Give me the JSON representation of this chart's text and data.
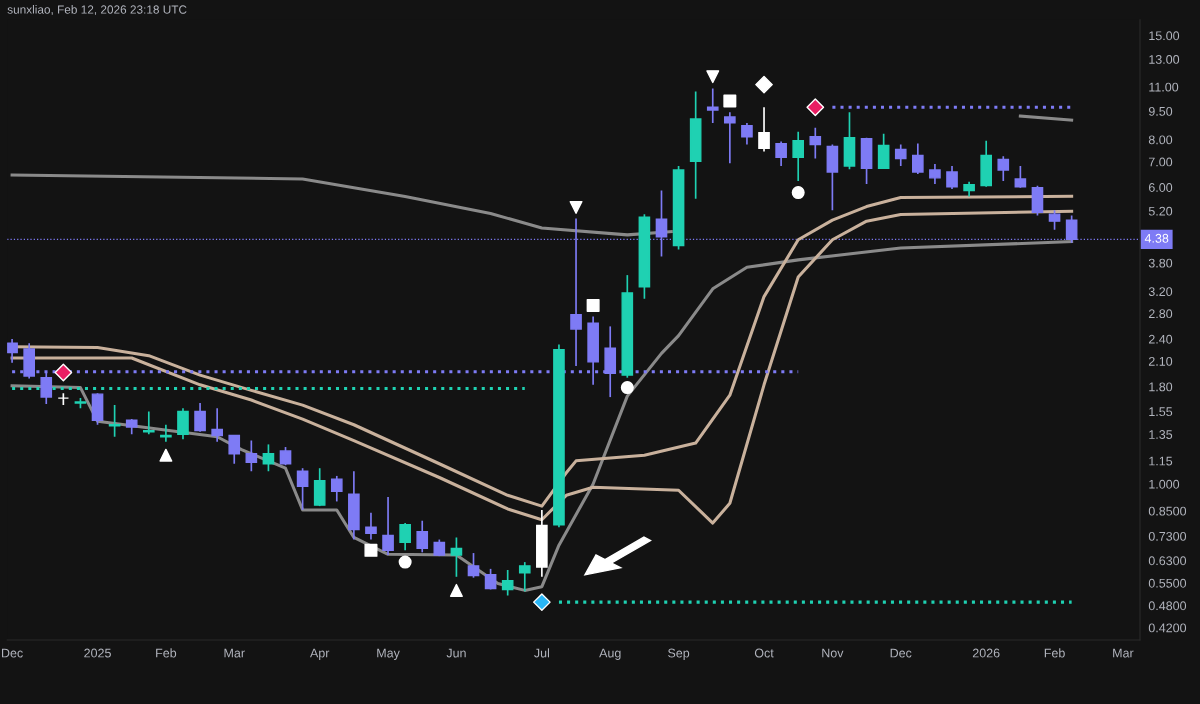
{
  "chart_data": {
    "type": "candlestick",
    "annotations": [
      "sunxliao, Feb 12, 2026 23:18 UTC"
    ],
    "x": [
      "2024-12-02",
      "2024-12-09",
      "2024-12-16",
      "2024-12-23",
      "2024-12-30",
      "2025-01-06",
      "2025-01-13",
      "2025-01-20",
      "2025-01-27",
      "2025-02-03",
      "2025-02-10",
      "2025-02-17",
      "2025-02-24",
      "2025-03-03",
      "2025-03-10",
      "2025-03-17",
      "2025-03-24",
      "2025-03-31",
      "2025-04-07",
      "2025-04-14",
      "2025-04-21",
      "2025-04-28",
      "2025-05-05",
      "2025-05-12",
      "2025-05-19",
      "2025-05-26",
      "2025-06-02",
      "2025-06-09",
      "2025-06-16",
      "2025-06-23",
      "2025-06-30",
      "2025-07-07",
      "2025-07-14",
      "2025-07-21",
      "2025-07-28",
      "2025-08-04",
      "2025-08-11",
      "2025-08-18",
      "2025-08-25",
      "2025-09-01",
      "2025-09-08",
      "2025-09-15",
      "2025-09-22",
      "2025-09-29",
      "2025-10-06",
      "2025-10-13",
      "2025-10-20",
      "2025-10-27",
      "2025-11-03",
      "2025-11-10",
      "2025-11-17",
      "2025-11-24",
      "2025-12-01",
      "2025-12-08",
      "2025-12-15",
      "2025-12-22",
      "2025-12-29",
      "2026-01-05",
      "2026-01-12",
      "2026-01-19",
      "2026-01-26",
      "2026-02-02",
      "2026-02-09"
    ],
    "ohlc": [
      [
        2.34,
        2.4,
        2.08,
        2.21
      ],
      [
        2.26,
        2.34,
        1.89,
        1.92
      ],
      [
        1.9,
        1.97,
        1.62,
        1.69
      ],
      [
        1.68,
        1.73,
        1.61,
        1.68
      ],
      [
        1.63,
        1.68,
        1.58,
        1.64
      ],
      [
        1.72,
        1.73,
        1.43,
        1.47
      ],
      [
        1.42,
        1.61,
        1.33,
        1.43
      ],
      [
        1.47,
        1.48,
        1.35,
        1.41
      ],
      [
        1.37,
        1.55,
        1.35,
        1.38
      ],
      [
        1.33,
        1.43,
        1.29,
        1.34
      ],
      [
        1.35,
        1.58,
        1.31,
        1.55
      ],
      [
        1.55,
        1.63,
        1.37,
        1.38
      ],
      [
        1.39,
        1.58,
        1.29,
        1.34
      ],
      [
        1.34,
        1.34,
        1.13,
        1.2
      ],
      [
        1.2,
        1.3,
        1.08,
        1.14
      ],
      [
        1.13,
        1.27,
        1.08,
        1.2
      ],
      [
        1.22,
        1.25,
        1.12,
        1.13
      ],
      [
        1.08,
        1.1,
        0.855,
        0.986
      ],
      [
        0.88,
        1.1,
        0.875,
        1.02
      ],
      [
        1.03,
        1.05,
        0.9,
        0.957
      ],
      [
        0.94,
        1.08,
        0.715,
        0.76
      ],
      [
        0.77,
        0.84,
        0.715,
        0.742
      ],
      [
        0.733,
        0.924,
        0.651,
        0.67
      ],
      [
        0.703,
        0.79,
        0.67,
        0.782
      ],
      [
        0.75,
        0.801,
        0.662,
        0.678
      ],
      [
        0.703,
        0.715,
        0.647,
        0.651
      ],
      [
        0.651,
        0.724,
        0.571,
        0.678
      ],
      [
        0.61,
        0.659,
        0.568,
        0.575
      ],
      [
        0.578,
        0.599,
        0.529,
        0.532
      ],
      [
        0.529,
        0.595,
        0.51,
        0.558
      ],
      [
        0.585,
        0.624,
        0.523,
        0.61
      ],
      [
        0.606,
        0.855,
        0.571,
        0.778
      ],
      [
        0.782,
        2.32,
        0.77,
        2.25
      ],
      [
        2.78,
        4.97,
        2.04,
        2.55
      ],
      [
        2.64,
        2.75,
        1.82,
        2.09
      ],
      [
        2.27,
        2.59,
        1.69,
        1.95
      ],
      [
        1.93,
        3.53,
        1.9,
        3.17
      ],
      [
        3.29,
        5.1,
        3.06,
        5.01
      ],
      [
        4.95,
        5.88,
        3.95,
        4.45
      ],
      [
        4.22,
        6.82,
        4.12,
        6.66
      ],
      [
        7.02,
        10.7,
        5.6,
        9.06
      ],
      [
        9.73,
        10.9,
        8.85,
        9.56
      ],
      [
        9.17,
        9.44,
        6.94,
        8.85
      ],
      [
        8.7,
        8.85,
        7.77,
        8.14
      ],
      [
        8.34,
        9.73,
        7.45,
        7.59
      ],
      [
        7.81,
        7.91,
        6.82,
        7.19
      ],
      [
        7.19,
        8.39,
        6.23,
        7.95
      ],
      [
        8.14,
        8.59,
        7.14,
        7.77
      ],
      [
        7.68,
        7.77,
        5.22,
        6.58
      ],
      [
        6.82,
        9.44,
        6.69,
        8.09
      ],
      [
        8.04,
        8.09,
        6.12,
        6.73
      ],
      [
        6.73,
        8.29,
        6.73,
        7.72
      ],
      [
        7.54,
        7.77,
        6.82,
        7.14
      ],
      [
        7.27,
        7.81,
        6.5,
        6.58
      ],
      [
        6.66,
        6.9,
        6.12,
        6.35
      ],
      [
        6.58,
        6.82,
        5.94,
        6.02
      ],
      [
        5.88,
        6.2,
        5.67,
        6.09
      ],
      [
        6.06,
        7.95,
        6.02,
        7.27
      ],
      [
        7.1,
        7.23,
        6.23,
        6.66
      ],
      [
        6.31,
        6.82,
        5.98,
        6.02
      ],
      [
        5.98,
        6.05,
        5.06,
        5.16
      ],
      [
        5.1,
        5.22,
        4.64,
        4.89
      ],
      [
        4.92,
        5.06,
        4.29,
        4.38
      ]
    ],
    "colors": [
      "#7e7bf5",
      "#7e7bf5",
      "#7e7bf5",
      "#ffffff",
      "#1fd1b2",
      "#7e7bf5",
      "#1fd1b2",
      "#7e7bf5",
      "#1fd1b2",
      "#1fd1b2",
      "#1fd1b2",
      "#7e7bf5",
      "#7e7bf5",
      "#7e7bf5",
      "#7e7bf5",
      "#1fd1b2",
      "#7e7bf5",
      "#7e7bf5",
      "#1fd1b2",
      "#7e7bf5",
      "#7e7bf5",
      "#7e7bf5",
      "#7e7bf5",
      "#1fd1b2",
      "#7e7bf5",
      "#7e7bf5",
      "#1fd1b2",
      "#7e7bf5",
      "#7e7bf5",
      "#1fd1b2",
      "#1fd1b2",
      "#ffffff",
      "#1fd1b2",
      "#7e7bf5",
      "#7e7bf5",
      "#7e7bf5",
      "#1fd1b2",
      "#1fd1b2",
      "#7e7bf5",
      "#1fd1b2",
      "#1fd1b2",
      "#7e7bf5",
      "#7e7bf5",
      "#7e7bf5",
      "#ffffff",
      "#7e7bf5",
      "#1fd1b2",
      "#7e7bf5",
      "#7e7bf5",
      "#1fd1b2",
      "#7e7bf5",
      "#1fd1b2",
      "#7e7bf5",
      "#7e7bf5",
      "#7e7bf5",
      "#7e7bf5",
      "#1fd1b2",
      "#1fd1b2",
      "#7e7bf5",
      "#7e7bf5",
      "#7e7bf5",
      "#7e7bf5",
      "#7e7bf5"
    ],
    "series": [
      {
        "type": "line",
        "color": "#8a8a8a",
        "line_style": "solid",
        "x": [
          "2024-12-02",
          "2025-03-31",
          "2025-05-12",
          "2025-06-16",
          "2025-07-07",
          "2025-08-11",
          "2025-08-29"
        ],
        "values": [
          6.46,
          6.31,
          5.67,
          5.12,
          4.69,
          4.5,
          4.59
        ]
      },
      {
        "type": "line",
        "color": "#8a8a8a",
        "line_style": "solid",
        "x": [
          "2024-12-02",
          "2024-12-30",
          "2025-01-06",
          "2025-02-24",
          "2025-03-06",
          "2025-03-24",
          "2025-03-31",
          "2025-04-14",
          "2025-04-21",
          "2025-05-05",
          "2025-06-02",
          "2025-06-19",
          "2025-06-30",
          "2025-07-07",
          "2025-07-14",
          "2025-07-28",
          "2025-08-11",
          "2025-08-25",
          "2025-09-01",
          "2025-09-15",
          "2025-09-29",
          "2025-10-20",
          "2025-12-01",
          "2026-02-09"
        ],
        "values": [
          1.81,
          1.79,
          1.46,
          1.33,
          1.23,
          1.1,
          0.855,
          0.855,
          0.724,
          0.654,
          0.651,
          0.548,
          0.526,
          0.538,
          0.691,
          1.0,
          1.7,
          2.2,
          2.45,
          3.25,
          3.7,
          3.87,
          4.16,
          4.32
        ]
      },
      {
        "type": "line",
        "color": "#8a8a8a",
        "line_style": "solid",
        "x": [
          "2026-01-19",
          "2026-02-09"
        ],
        "values": [
          9.22,
          9.0
        ]
      },
      {
        "type": "line",
        "color": "#c9b19c",
        "line_style": "solid",
        "x": [
          "2024-12-02",
          "2025-01-06",
          "2025-01-27",
          "2025-02-17",
          "2025-03-10",
          "2025-03-31",
          "2025-04-21",
          "2025-05-26",
          "2025-06-23",
          "2025-07-07",
          "2025-07-17",
          "2025-07-21",
          "2025-08-18",
          "2025-09-08",
          "2025-09-22",
          "2025-10-06",
          "2025-10-20",
          "2025-11-03",
          "2025-11-17",
          "2025-12-01",
          "2026-02-09"
        ],
        "values": [
          2.29,
          2.28,
          2.17,
          1.93,
          1.76,
          1.61,
          1.43,
          1.13,
          0.934,
          0.875,
          1.07,
          1.15,
          1.19,
          1.28,
          1.71,
          3.1,
          4.37,
          4.92,
          5.34,
          5.64,
          5.68
        ]
      },
      {
        "type": "line",
        "color": "#c9b19c",
        "line_style": "solid",
        "x": [
          "2024-12-02",
          "2025-01-20",
          "2025-02-17",
          "2025-03-10",
          "2025-03-31",
          "2025-04-21",
          "2025-05-26",
          "2025-06-23",
          "2025-07-07",
          "2025-07-17",
          "2025-07-28",
          "2025-09-01",
          "2025-09-15",
          "2025-09-22",
          "2025-10-06",
          "2025-10-20",
          "2025-11-03",
          "2025-11-17",
          "2025-12-01",
          "2026-02-09"
        ],
        "values": [
          2.14,
          2.14,
          1.82,
          1.66,
          1.48,
          1.3,
          1.04,
          0.86,
          0.806,
          0.934,
          0.98,
          0.963,
          0.79,
          0.89,
          1.82,
          3.49,
          4.37,
          4.89,
          5.09,
          5.19
        ]
      },
      {
        "type": "line",
        "color": "#7e7bf5",
        "line_style": "dotted",
        "x": [
          "2024-12-02",
          "2025-10-20"
        ],
        "values": [
          1.97,
          1.97
        ]
      },
      {
        "type": "line",
        "color": "#1fd1b2",
        "line_style": "dotted",
        "x": [
          "2024-12-02",
          "2025-06-30"
        ],
        "values": [
          1.78,
          1.78
        ]
      },
      {
        "type": "line",
        "color": "#1fd1b2",
        "line_style": "dotted",
        "x": [
          "2025-07-14",
          "2026-02-09"
        ],
        "values": [
          0.49,
          0.49
        ]
      },
      {
        "type": "line",
        "color": "#7e7bf5",
        "line_style": "dotted",
        "x": [
          "2025-11-03",
          "2026-02-09"
        ],
        "values": [
          9.73,
          9.73
        ]
      },
      {
        "type": "scatter",
        "marker": "diamond",
        "color": "#e91e63",
        "x": [
          "2024-12-23",
          "2025-10-27"
        ],
        "values": [
          1.96,
          9.73
        ]
      },
      {
        "type": "scatter",
        "marker": "diamond",
        "color": "#29b6f6",
        "x": [
          "2025-07-07"
        ],
        "values": [
          0.49
        ]
      },
      {
        "type": "scatter",
        "marker": "diamond",
        "color": "#ffffff",
        "x": [
          "2025-10-06"
        ],
        "values": [
          11.15
        ]
      },
      {
        "type": "scatter",
        "marker": "triangle",
        "color": "#ffffff",
        "x": [
          "2025-02-03",
          "2025-06-02"
        ],
        "values": [
          1.19,
          0.526
        ]
      },
      {
        "type": "scatter",
        "marker": "triangle_down",
        "color": "#ffffff",
        "x": [
          "2025-07-21",
          "2025-09-15"
        ],
        "values": [
          5.31,
          11.7
        ]
      },
      {
        "type": "scatter",
        "marker": "square",
        "color": "#ffffff",
        "x": [
          "2025-04-28",
          "2025-07-28",
          "2025-09-22"
        ],
        "values": [
          0.67,
          2.94,
          10.1
        ]
      },
      {
        "type": "scatter",
        "marker": "circle",
        "color": "#ffffff",
        "x": [
          "2025-05-12",
          "2025-08-11",
          "2025-10-20"
        ],
        "values": [
          0.624,
          1.79,
          5.81
        ]
      }
    ],
    "ref_lines": [
      {
        "axis": "y",
        "value": 4.38,
        "label": "4.38",
        "color": "#7e7bf5",
        "line_style": "dotted"
      }
    ],
    "log": true,
    "grid": false,
    "xlim": [
      "2024-11-30",
      "2026-03-09"
    ],
    "xticks": [
      {
        "value": "2024-12-02",
        "label": "Dec"
      },
      {
        "value": "2025-01-06",
        "label": "2025"
      },
      {
        "value": "2025-02-03",
        "label": "Feb"
      },
      {
        "value": "2025-03-03",
        "label": "Mar"
      },
      {
        "value": "2025-04-07",
        "label": "Apr"
      },
      {
        "value": "2025-05-05",
        "label": "May"
      },
      {
        "value": "2025-06-02",
        "label": "Jun"
      },
      {
        "value": "2025-07-07",
        "label": "Jul"
      },
      {
        "value": "2025-08-04",
        "label": "Aug"
      },
      {
        "value": "2025-09-01",
        "label": "Sep"
      },
      {
        "value": "2025-10-06",
        "label": "Oct"
      },
      {
        "value": "2025-11-03",
        "label": "Nov"
      },
      {
        "value": "2025-12-01",
        "label": "Dec"
      },
      {
        "value": "2026-01-05",
        "label": "2026"
      },
      {
        "value": "2026-02-02",
        "label": "Feb"
      },
      {
        "value": "2026-03-02",
        "label": "Mar"
      }
    ],
    "ylim": [
      0.39,
      16.5
    ],
    "yticks": [
      {
        "value": 15,
        "label": "15.00"
      },
      {
        "value": 13,
        "label": "13.00"
      },
      {
        "value": 11,
        "label": "11.00"
      },
      {
        "value": 9.5,
        "label": "9.50"
      },
      {
        "value": 8,
        "label": "8.00"
      },
      {
        "value": 7,
        "label": "7.00"
      },
      {
        "value": 6,
        "label": "6.00"
      },
      {
        "value": 5.2,
        "label": "5.20"
      },
      {
        "value": 3.8,
        "label": "3.80"
      },
      {
        "value": 3.2,
        "label": "3.20"
      },
      {
        "value": 2.8,
        "label": "2.80"
      },
      {
        "value": 2.4,
        "label": "2.40"
      },
      {
        "value": 2.1,
        "label": "2.10"
      },
      {
        "value": 1.8,
        "label": "1.80"
      },
      {
        "value": 1.55,
        "label": "1.55"
      },
      {
        "value": 1.35,
        "label": "1.35"
      },
      {
        "value": 1.15,
        "label": "1.15"
      },
      {
        "value": 1,
        "label": "1.000"
      },
      {
        "value": 0.85,
        "label": "0.8500"
      },
      {
        "value": 0.73,
        "label": "0.7300"
      },
      {
        "value": 0.63,
        "label": "0.6300"
      },
      {
        "value": 0.55,
        "label": "0.5500"
      },
      {
        "value": 0.48,
        "label": "0.4800"
      },
      {
        "value": 0.42,
        "label": "0.4200"
      }
    ]
  }
}
